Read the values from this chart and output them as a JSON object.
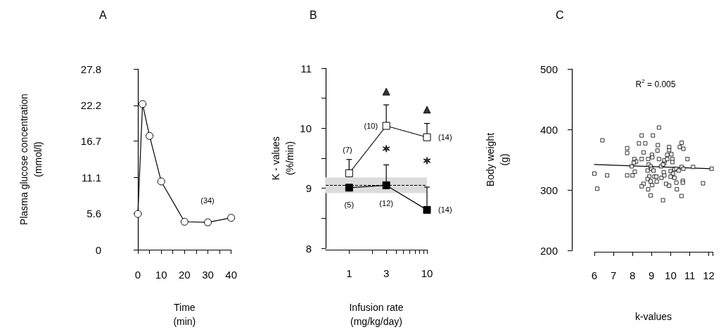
{
  "chart_data": [
    {
      "type": "line",
      "title": "A",
      "xlabel": "Time\n(min)",
      "ylabel": "Plasma glucose concentration\n(mmol/l)",
      "marker": "circle",
      "line_style": "solid",
      "xlim": [
        0,
        40
      ],
      "xticks": [
        0,
        {
          "value": 5,
          "label": null
        },
        10,
        {
          "value": 15,
          "label": null
        },
        20,
        {
          "value": 25,
          "label": null
        },
        30,
        {
          "value": 35,
          "label": null
        },
        40
      ],
      "ylim": [
        0,
        27.8
      ],
      "yticks": [
        0,
        5.6,
        11.1,
        16.7,
        22.2,
        27.8
      ],
      "x": [
        0,
        2,
        5,
        10,
        20,
        30,
        40
      ],
      "series": [
        {
          "color": "#ffffff",
          "values": [
            5.5,
            22.4,
            17.5,
            10.5,
            4.3,
            4.2,
            4.9
          ]
        }
      ],
      "annotations": [
        "(34)"
      ]
    },
    {
      "type": "line",
      "title": "B",
      "xlabel": "Infusion rate\n(mg/kg/day)",
      "ylabel": "K - values\n(%/min)",
      "log": "x",
      "xlim": [
        0.5,
        10
      ],
      "xticks": [
        1,
        {
          "value": 2,
          "label": null
        },
        3,
        {
          "value": 4,
          "label": null
        },
        {
          "value": 5,
          "label": null
        },
        {
          "value": 6,
          "label": null
        },
        {
          "value": 7,
          "label": null
        },
        {
          "value": 8,
          "label": null
        },
        {
          "value": 9,
          "label": null
        },
        10
      ],
      "ylim": [
        8,
        11
      ],
      "yticks": [
        8,
        {
          "value": 8.5,
          "label": null
        },
        9,
        {
          "value": 9.5,
          "label": null
        },
        10,
        {
          "value": 10.5,
          "label": null
        },
        11
      ],
      "x": [
        1,
        3,
        10
      ],
      "series": [
        {
          "type": "line",
          "marker": "square",
          "line_style": "dotted",
          "color": "#ffffff",
          "values": [
            9.25,
            10.04,
            9.85
          ],
          "errors": [
            [
              9.25,
              9.48
            ],
            [
              10.04,
              10.39
            ],
            [
              9.85,
              10.08
            ]
          ]
        },
        {
          "type": "line",
          "marker": "square",
          "line_style": "solid",
          "color": "#000000",
          "values": [
            9.01,
            9.05,
            8.64
          ],
          "errors": [
            null,
            [
              9.05,
              9.39
            ],
            [
              8.64,
              9.02
            ]
          ]
        },
        {
          "type": "scatter",
          "marker": "triangle",
          "color": "#000000",
          "x": [
            3,
            10
          ],
          "values": [
            10.61,
            10.31
          ]
        },
        {
          "type": "scatter",
          "marker": "cross",
          "color": "#000000",
          "x": [
            3,
            10
          ],
          "values": [
            9.66,
            9.46
          ]
        }
      ],
      "bands": [
        {
          "axis": "y",
          "from": 8.92,
          "to": 9.18,
          "color": "#dcdcdc"
        }
      ],
      "ref_lines": [
        {
          "axis": "y",
          "value": 9.05,
          "line_style": "dashed"
        }
      ],
      "annotations": [
        "(7)",
        {
          "text": "(10)",
          "x": 3,
          "y": 10.04
        },
        {
          "text": "(14)",
          "x": 10,
          "y": 9.85
        },
        {
          "text": "(5)",
          "x": 1,
          "y": 9.01
        },
        {
          "text": "(12)",
          "x": 3,
          "y": 9.05
        },
        {
          "text": "(14)",
          "x": 10,
          "y": 8.64
        }
      ]
    },
    {
      "type": "scatter",
      "title": "C",
      "xlabel": "k-values",
      "ylabel": "Body weight\n(g)",
      "xlim": [
        6,
        12.2
      ],
      "xticks": [
        6,
        7,
        8,
        9,
        10,
        11,
        12
      ],
      "ylim": [
        200,
        500
      ],
      "yticks": [
        200,
        300,
        400,
        500
      ],
      "series": [
        {
          "type": "scatter",
          "marker": "square",
          "color": "#ffffff",
          "x": [
            6.42,
            6.0,
            6.15,
            6.67,
            7.72,
            7.72,
            7.72,
            8.0,
            7.96,
            8.12,
            8.1,
            8.19,
            8.07,
            8.34,
            8.67,
            8.48,
            9.07,
            8.58,
            8.48,
            8.82,
            9.02,
            9.04,
            9.39,
            9.33,
            9.31,
            9.39,
            8.85,
            8.95,
            9.0,
            8.79,
            9.1,
            8.88,
            9.15,
            9.25,
            8.79,
            8.95,
            9.27,
            8.58,
            8.48,
            9.03,
            8.82,
            8.95,
            9.6,
            9.52,
            9.64,
            9.67,
            9.5,
            9.67,
            9.67,
            9.6,
            9.82,
            9.92,
            9.92,
            10.04,
            9.82,
            10.09,
            10.09,
            10.0,
            10.12,
            10.2,
            10.0,
            9.76,
            9.92,
            10.3,
            10.33,
            10.2,
            10.3,
            10.42,
            10.58,
            10.48,
            10.67,
            10.58,
            10.67,
            10.88,
            10.64,
            10.64,
            10.57,
            11.18,
            11.7,
            12.15
          ],
          "values": [
            382,
            327,
            302,
            324,
            369,
            361,
            324,
            324,
            339,
            330,
            351,
            347,
            345,
            377,
            377,
            390,
            390,
            362,
            351,
            351,
            358,
            354,
            403,
            374,
            365,
            351,
            342,
            339,
            335,
            332,
            332,
            322,
            322,
            322,
            318,
            314,
            314,
            310,
            306,
            308,
            301,
            291,
            283,
            320,
            329,
            324,
            339,
            345,
            349,
            342,
            358,
            366,
            371,
            359,
            351,
            351,
            346,
            331,
            327,
            320,
            322,
            310,
            307,
            312,
            301,
            334,
            335,
            332,
            378,
            371,
            368,
            338,
            335,
            351,
            315,
            312,
            290,
            338,
            311,
            335
          ]
        },
        {
          "type": "line",
          "marker": "none",
          "line_style": "solid",
          "color": "#000000",
          "x": [
            6,
            12.15
          ],
          "values": [
            342,
            335
          ]
        }
      ],
      "annotations": [
        "R$^{2}$ = 0.005"
      ]
    }
  ]
}
